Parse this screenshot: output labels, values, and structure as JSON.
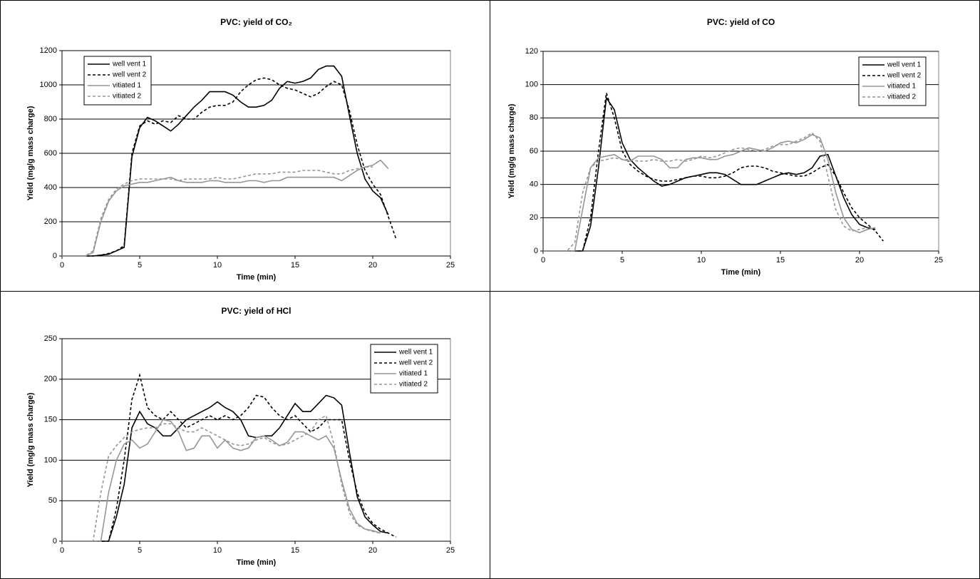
{
  "chart_data": [
    {
      "type": "line",
      "title": "PVC: yield of CO₂",
      "x_label": "Time (min)",
      "y_label": "Yield (mg/g mass charge)",
      "xlim": [
        0,
        25
      ],
      "xticks": [
        0,
        5,
        10,
        15,
        20,
        25
      ],
      "ylim": [
        0,
        1200
      ],
      "yticks": [
        0,
        200,
        400,
        600,
        800,
        1000,
        1200
      ],
      "grid": true,
      "legend": "upper left",
      "x": [
        0,
        0.5,
        1,
        1.5,
        2,
        2.5,
        3,
        3.5,
        4,
        4.5,
        5,
        5.5,
        6,
        6.5,
        7,
        7.5,
        8,
        8.5,
        9,
        9.5,
        10,
        10.5,
        11,
        11.5,
        12,
        12.5,
        13,
        13.5,
        14,
        14.5,
        15,
        15.5,
        16,
        16.5,
        17,
        17.5,
        18,
        18.5,
        19,
        19.5,
        20,
        20.5,
        21,
        21.5
      ],
      "series": [
        {
          "name": "well vent 1",
          "color": "#000000",
          "style": "solid",
          "values": [
            0,
            0,
            0,
            0,
            0,
            5,
            10,
            30,
            50,
            580,
            750,
            810,
            790,
            760,
            730,
            770,
            820,
            870,
            910,
            960,
            960,
            960,
            940,
            900,
            870,
            870,
            880,
            910,
            980,
            1020,
            1010,
            1020,
            1040,
            1090,
            1110,
            1110,
            1050,
            820,
            600,
            450,
            380,
            340,
            240,
            null
          ]
        },
        {
          "name": "well vent 2",
          "color": "#000000",
          "style": "dashed",
          "values": [
            0,
            0,
            0,
            0,
            0,
            5,
            15,
            30,
            60,
            600,
            760,
            790,
            770,
            790,
            780,
            820,
            800,
            800,
            840,
            870,
            880,
            880,
            900,
            960,
            1000,
            1030,
            1040,
            1030,
            1000,
            980,
            970,
            950,
            930,
            950,
            990,
            1020,
            1000,
            850,
            650,
            500,
            420,
            360,
            230,
            100
          ]
        },
        {
          "name": "vitiated 1",
          "color": "#969696",
          "style": "solid",
          "values": [
            0,
            0,
            0,
            0,
            20,
            200,
            320,
            380,
            410,
            420,
            430,
            430,
            440,
            450,
            460,
            440,
            430,
            430,
            430,
            440,
            440,
            430,
            430,
            430,
            440,
            440,
            430,
            440,
            440,
            460,
            460,
            460,
            460,
            460,
            460,
            460,
            440,
            470,
            500,
            520,
            530,
            560,
            510,
            null
          ]
        },
        {
          "name": "vitiated 2",
          "color": "#969696",
          "style": "dashed",
          "values": [
            0,
            0,
            0,
            0,
            30,
            220,
            330,
            390,
            420,
            440,
            450,
            450,
            450,
            450,
            450,
            440,
            450,
            450,
            450,
            450,
            460,
            450,
            450,
            460,
            470,
            480,
            480,
            480,
            490,
            490,
            490,
            500,
            500,
            500,
            490,
            480,
            480,
            500,
            510,
            520,
            520,
            null,
            null,
            null
          ]
        }
      ]
    },
    {
      "type": "line",
      "title": "PVC: yield of CO",
      "x_label": "Time (min)",
      "y_label": "Yield (mg/g mass charge)",
      "xlim": [
        0,
        25
      ],
      "xticks": [
        0,
        5,
        10,
        15,
        20,
        25
      ],
      "ylim": [
        0,
        120
      ],
      "yticks": [
        0,
        20,
        40,
        60,
        80,
        100,
        120
      ],
      "grid": true,
      "legend": "upper right",
      "x": [
        0,
        0.5,
        1,
        1.5,
        2,
        2.5,
        3,
        3.5,
        4,
        4.5,
        5,
        5.5,
        6,
        6.5,
        7,
        7.5,
        8,
        8.5,
        9,
        9.5,
        10,
        10.5,
        11,
        11.5,
        12,
        12.5,
        13,
        13.5,
        14,
        14.5,
        15,
        15.5,
        16,
        16.5,
        17,
        17.5,
        18,
        18.5,
        19,
        19.5,
        20,
        20.5,
        21,
        21.5
      ],
      "series": [
        {
          "name": "well vent 1",
          "color": "#000000",
          "style": "solid",
          "values": [
            0,
            0,
            0,
            0,
            0,
            0,
            15,
            50,
            92,
            85,
            65,
            55,
            50,
            46,
            42,
            39,
            40,
            42,
            44,
            45,
            46,
            47,
            47,
            46,
            43,
            40,
            40,
            40,
            42,
            44,
            46,
            47,
            46,
            47,
            50,
            57,
            58,
            45,
            32,
            22,
            16,
            14,
            13,
            null
          ]
        },
        {
          "name": "well vent 2",
          "color": "#000000",
          "style": "dashed",
          "values": [
            0,
            0,
            0,
            0,
            0,
            0,
            20,
            60,
            95,
            80,
            60,
            52,
            48,
            45,
            43,
            42,
            42,
            43,
            44,
            45,
            45,
            44,
            44,
            45,
            47,
            50,
            51,
            51,
            50,
            48,
            47,
            46,
            45,
            45,
            47,
            50,
            52,
            45,
            35,
            26,
            20,
            16,
            12,
            6
          ]
        },
        {
          "name": "vitiated 1",
          "color": "#969696",
          "style": "solid",
          "values": [
            0,
            0,
            0,
            0,
            0,
            25,
            50,
            56,
            57,
            58,
            55,
            54,
            57,
            57,
            57,
            55,
            50,
            50,
            55,
            56,
            56,
            55,
            55,
            57,
            58,
            60,
            62,
            61,
            60,
            62,
            65,
            66,
            65,
            67,
            70,
            68,
            55,
            35,
            20,
            13,
            11,
            13,
            14,
            null
          ]
        },
        {
          "name": "vitiated 2",
          "color": "#969696",
          "style": "dashed",
          "values": [
            0,
            0,
            0,
            0,
            5,
            35,
            50,
            54,
            55,
            56,
            55,
            55,
            54,
            54,
            55,
            54,
            54,
            55,
            54,
            55,
            57,
            56,
            57,
            59,
            61,
            62,
            61,
            60,
            61,
            63,
            64,
            64,
            66,
            68,
            71,
            66,
            45,
            25,
            15,
            12,
            13,
            14,
            null,
            null
          ]
        }
      ]
    },
    {
      "type": "line",
      "title": "PVC: yield of HCl",
      "x_label": "Time (min)",
      "y_label": "Yield (mg/g mass charge)",
      "xlim": [
        0,
        25
      ],
      "xticks": [
        0,
        5,
        10,
        15,
        20,
        25
      ],
      "ylim": [
        0,
        250
      ],
      "yticks": [
        0,
        50,
        100,
        150,
        200,
        250
      ],
      "grid": true,
      "legend": "upper right",
      "x": [
        0,
        0.5,
        1,
        1.5,
        2,
        2.5,
        3,
        3.5,
        4,
        4.5,
        5,
        5.5,
        6,
        6.5,
        7,
        7.5,
        8,
        8.5,
        9,
        9.5,
        10,
        10.5,
        11,
        11.5,
        12,
        12.5,
        13,
        13.5,
        14,
        14.5,
        15,
        15.5,
        16,
        16.5,
        17,
        17.5,
        18,
        18.5,
        19,
        19.5,
        20,
        20.5,
        21,
        21.5
      ],
      "series": [
        {
          "name": "well vent 1",
          "color": "#000000",
          "style": "solid",
          "values": [
            0,
            0,
            0,
            0,
            0,
            0,
            0,
            30,
            70,
            140,
            160,
            145,
            140,
            130,
            130,
            140,
            150,
            155,
            160,
            165,
            172,
            165,
            160,
            150,
            130,
            128,
            130,
            130,
            140,
            155,
            170,
            160,
            160,
            170,
            180,
            177,
            168,
            110,
            55,
            30,
            20,
            12,
            10,
            null
          ]
        },
        {
          "name": "well vent 2",
          "color": "#000000",
          "style": "dashed",
          "values": [
            0,
            0,
            0,
            0,
            0,
            0,
            0,
            40,
            100,
            175,
            205,
            165,
            155,
            150,
            160,
            150,
            140,
            145,
            150,
            155,
            150,
            155,
            150,
            155,
            165,
            180,
            178,
            165,
            155,
            150,
            155,
            145,
            135,
            140,
            150,
            150,
            150,
            100,
            60,
            35,
            22,
            15,
            10,
            5
          ]
        },
        {
          "name": "vitiated 1",
          "color": "#969696",
          "style": "solid",
          "values": [
            0,
            0,
            0,
            0,
            0,
            0,
            60,
            100,
            120,
            125,
            115,
            120,
            135,
            150,
            148,
            135,
            112,
            115,
            130,
            130,
            115,
            125,
            115,
            112,
            115,
            128,
            130,
            125,
            118,
            122,
            135,
            135,
            130,
            125,
            130,
            115,
            75,
            40,
            22,
            15,
            13,
            10,
            null,
            null
          ]
        },
        {
          "name": "vitiated 2",
          "color": "#969696",
          "style": "dashed",
          "values": [
            0,
            0,
            0,
            0,
            0,
            60,
            105,
            118,
            128,
            135,
            138,
            140,
            140,
            145,
            145,
            140,
            135,
            135,
            140,
            135,
            130,
            125,
            120,
            118,
            120,
            125,
            128,
            122,
            118,
            120,
            125,
            130,
            135,
            150,
            155,
            120,
            70,
            35,
            20,
            15,
            12,
            10,
            null,
            null
          ]
        }
      ]
    }
  ]
}
